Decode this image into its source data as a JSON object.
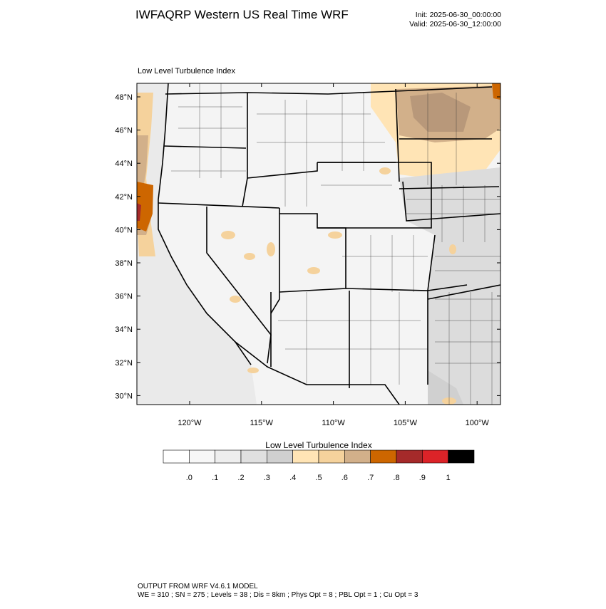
{
  "header": {
    "title": "IWFAQRP Western US Real Time WRF",
    "init": "Init: 2025-06-30_00:00:00",
    "valid": "Valid: 2025-06-30_12:00:00"
  },
  "map": {
    "title": "Low Level Turbulence Index",
    "lat_labels": [
      "48°N",
      "46°N",
      "44°N",
      "42°N",
      "40°N",
      "38°N",
      "36°N",
      "34°N",
      "32°N",
      "30°N"
    ],
    "lon_labels": [
      "120°W",
      "115°W",
      "110°W",
      "105°W",
      "100°W"
    ]
  },
  "colorbar": {
    "title": "Low Level Turbulence Index",
    "colors": [
      "#ffffff",
      "#f7f7f7",
      "#eeeeee",
      "#e0e0e0",
      "#d0d0d0",
      "#ffe4b5",
      "#f5d29c",
      "#d2b08a",
      "#cd6600",
      "#a52a2a",
      "#dc2328",
      "#000000"
    ],
    "labels": [
      ".0",
      ".1",
      ".2",
      ".3",
      ".4",
      ".5",
      ".6",
      ".7",
      ".8",
      ".9",
      "1"
    ]
  },
  "footer": {
    "line1": "OUTPUT FROM WRF V4.6.1 MODEL",
    "line2": "WE = 310 ; SN = 275 ; Levels = 38 ; Dis = 8km ; Phys Opt = 8 ; PBL Opt = 1 ; Cu Opt = 3"
  }
}
